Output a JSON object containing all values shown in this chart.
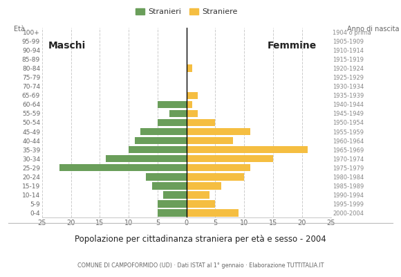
{
  "age_groups": [
    "0-4",
    "5-9",
    "10-14",
    "15-19",
    "20-24",
    "25-29",
    "30-34",
    "35-39",
    "40-44",
    "45-49",
    "50-54",
    "55-59",
    "60-64",
    "65-69",
    "70-74",
    "75-79",
    "80-84",
    "85-89",
    "90-94",
    "95-99",
    "100+"
  ],
  "birth_years": [
    "2000-2004",
    "1995-1999",
    "1990-1994",
    "1985-1989",
    "1980-1984",
    "1975-1979",
    "1970-1974",
    "1965-1969",
    "1960-1964",
    "1955-1959",
    "1950-1954",
    "1945-1949",
    "1940-1944",
    "1935-1939",
    "1930-1934",
    "1925-1929",
    "1920-1924",
    "1915-1919",
    "1910-1914",
    "1905-1909",
    "1904 o prima"
  ],
  "males": [
    5,
    5,
    4,
    6,
    7,
    22,
    14,
    10,
    9,
    8,
    5,
    3,
    5,
    0,
    0,
    0,
    0,
    0,
    0,
    0,
    0
  ],
  "females": [
    9,
    5,
    4,
    6,
    10,
    11,
    15,
    21,
    8,
    11,
    5,
    2,
    1,
    2,
    0,
    0,
    1,
    0,
    0,
    0,
    0
  ],
  "male_color": "#6a9e5a",
  "female_color": "#f5be41",
  "title": "Popolazione per cittadinanza straniera per età e sesso - 2004",
  "subtitle": "COMUNE DI CAMPOFORMIDO (UD) · Dati ISTAT al 1° gennaio · Elaborazione TUTTITALIA.IT",
  "legend_male": "Stranieri",
  "legend_female": "Straniere",
  "label_maschi": "Maschi",
  "label_femmine": "Femmine",
  "xlim": 25
}
